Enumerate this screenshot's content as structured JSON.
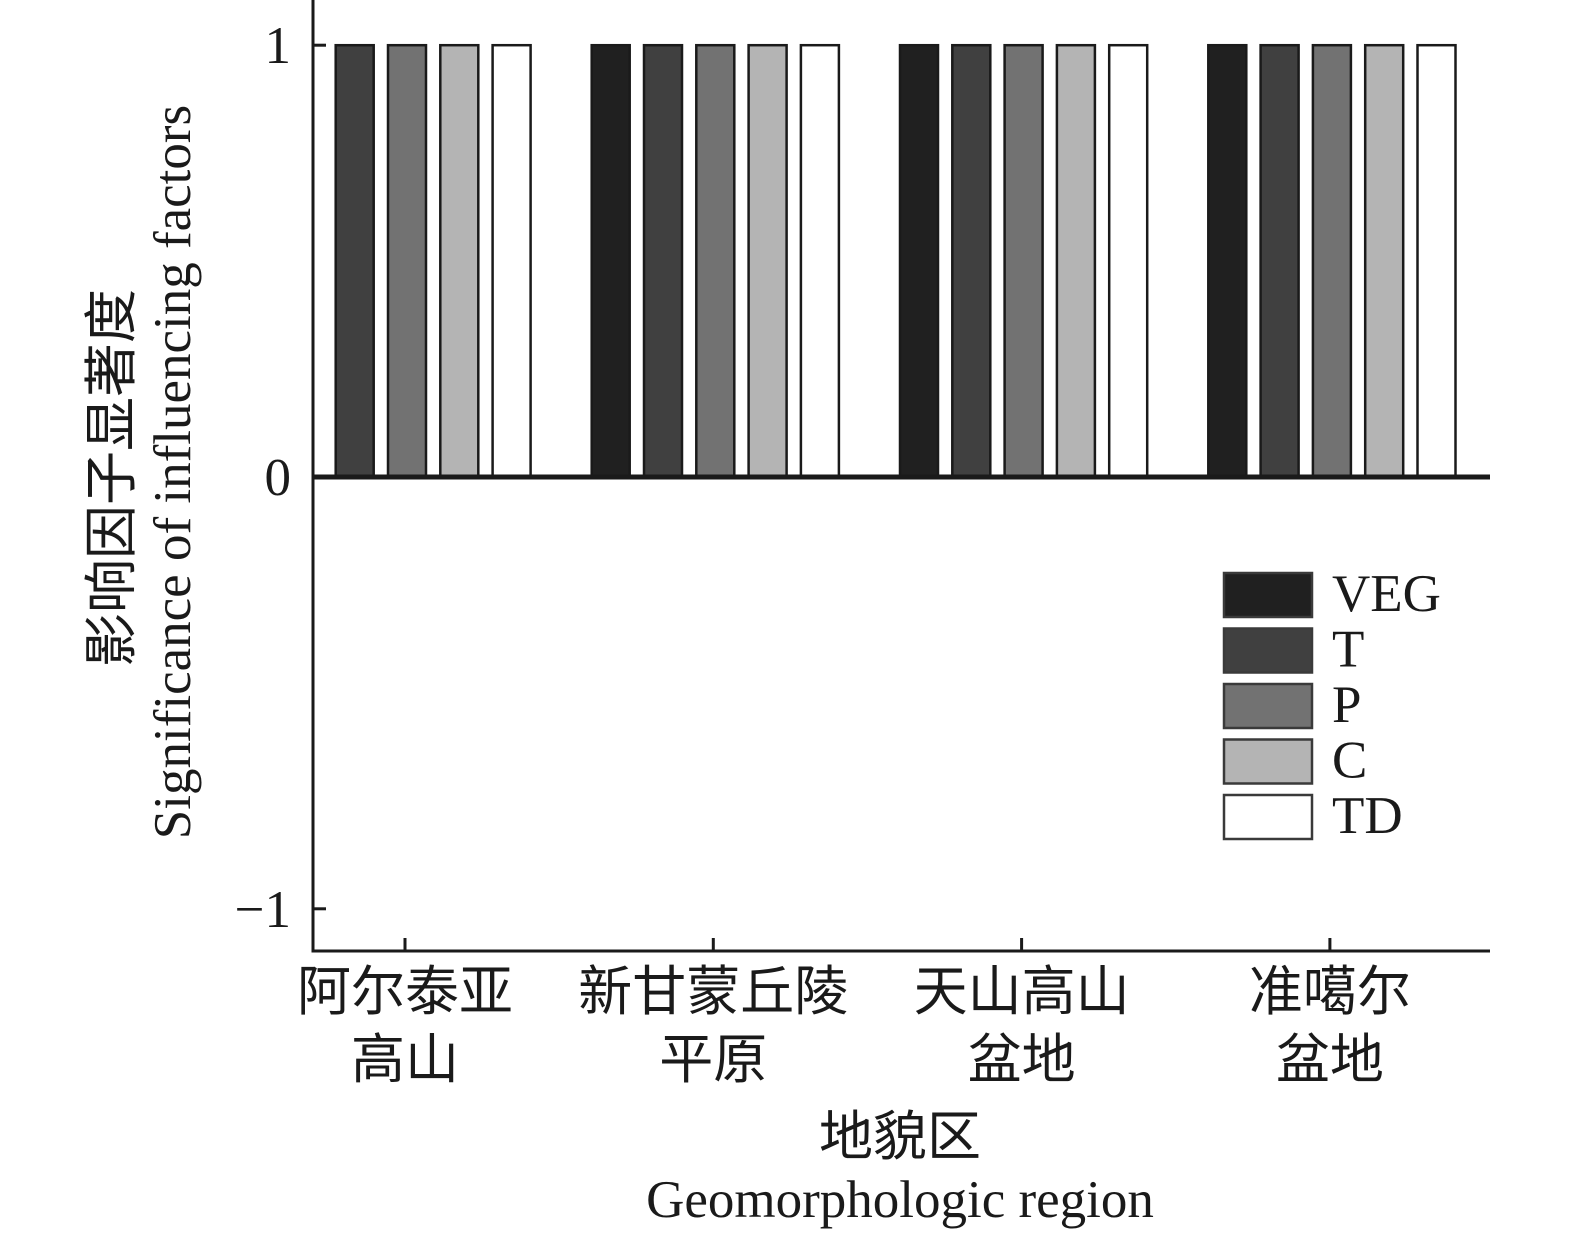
{
  "chart_data": {
    "type": "bar",
    "categories": [
      [
        "阿尔泰亚",
        "高山"
      ],
      [
        "新甘蒙丘陵",
        "平原"
      ],
      [
        "天山高山",
        "盆地"
      ],
      [
        "准噶尔",
        "盆地"
      ]
    ],
    "series": [
      {
        "name": "VEG",
        "color": "#202020",
        "values": [
          0,
          1,
          1,
          1
        ]
      },
      {
        "name": "T",
        "color": "#404040",
        "values": [
          1,
          1,
          1,
          1
        ]
      },
      {
        "name": "P",
        "color": "#727272",
        "values": [
          1,
          1,
          1,
          1
        ]
      },
      {
        "name": "C",
        "color": "#b4b4b4",
        "values": [
          1,
          1,
          1,
          1
        ]
      },
      {
        "name": "TD",
        "color": "#ffffff",
        "values": [
          1,
          1,
          1,
          1
        ]
      }
    ],
    "xlabel": [
      "地貌区",
      "Geomorphologic region"
    ],
    "ylabel": [
      "影响因子显著度",
      "Significance of influencing factors"
    ],
    "ylim": [
      -1.1,
      1.1
    ],
    "yticks": [
      1,
      0,
      -1
    ],
    "ytick_labels": [
      "1",
      "0",
      "−1"
    ],
    "grid": false,
    "zero_line": true,
    "legend_position": "right"
  }
}
